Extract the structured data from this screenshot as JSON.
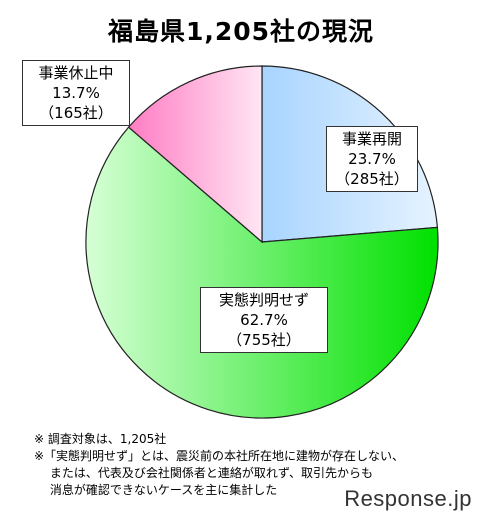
{
  "title": "福島県1,205社の現況",
  "chart_data": {
    "type": "pie",
    "title": "福島県1,205社の現況",
    "start_angle_deg": 0,
    "direction": "clockwise",
    "slices": [
      {
        "label": "事業再開",
        "pct_text": "23.7%",
        "count_text": "（285社）",
        "percent": 23.7,
        "count": 285,
        "color": "#a8d4ff",
        "gradient_start": "#a8d4ff",
        "gradient_end": "#e6f3ff"
      },
      {
        "label": "実態判明せず",
        "pct_text": "62.7%",
        "count_text": "（755社）",
        "percent": 62.7,
        "count": 755,
        "color": "#00ee00",
        "gradient_start": "#d6ffd6",
        "gradient_end": "#00e000"
      },
      {
        "label": "事業休止中",
        "pct_text": "13.7%",
        "count_text": "（165社）",
        "percent": 13.7,
        "count": 165,
        "color": "#ff9fd0",
        "gradient_start": "#ff7cc4",
        "gradient_end": "#ffe6f3"
      }
    ]
  },
  "notes": [
    "※ 調査対象は、1,205社",
    "※「実態判明せず」とは、震災前の本社所在地に建物が存在しない、",
    "　 または、代表及び会社関係者と連絡が取れず、取引先からも",
    "　 消息が確認できないケースを主に集計した"
  ],
  "watermark": "Response.jp"
}
